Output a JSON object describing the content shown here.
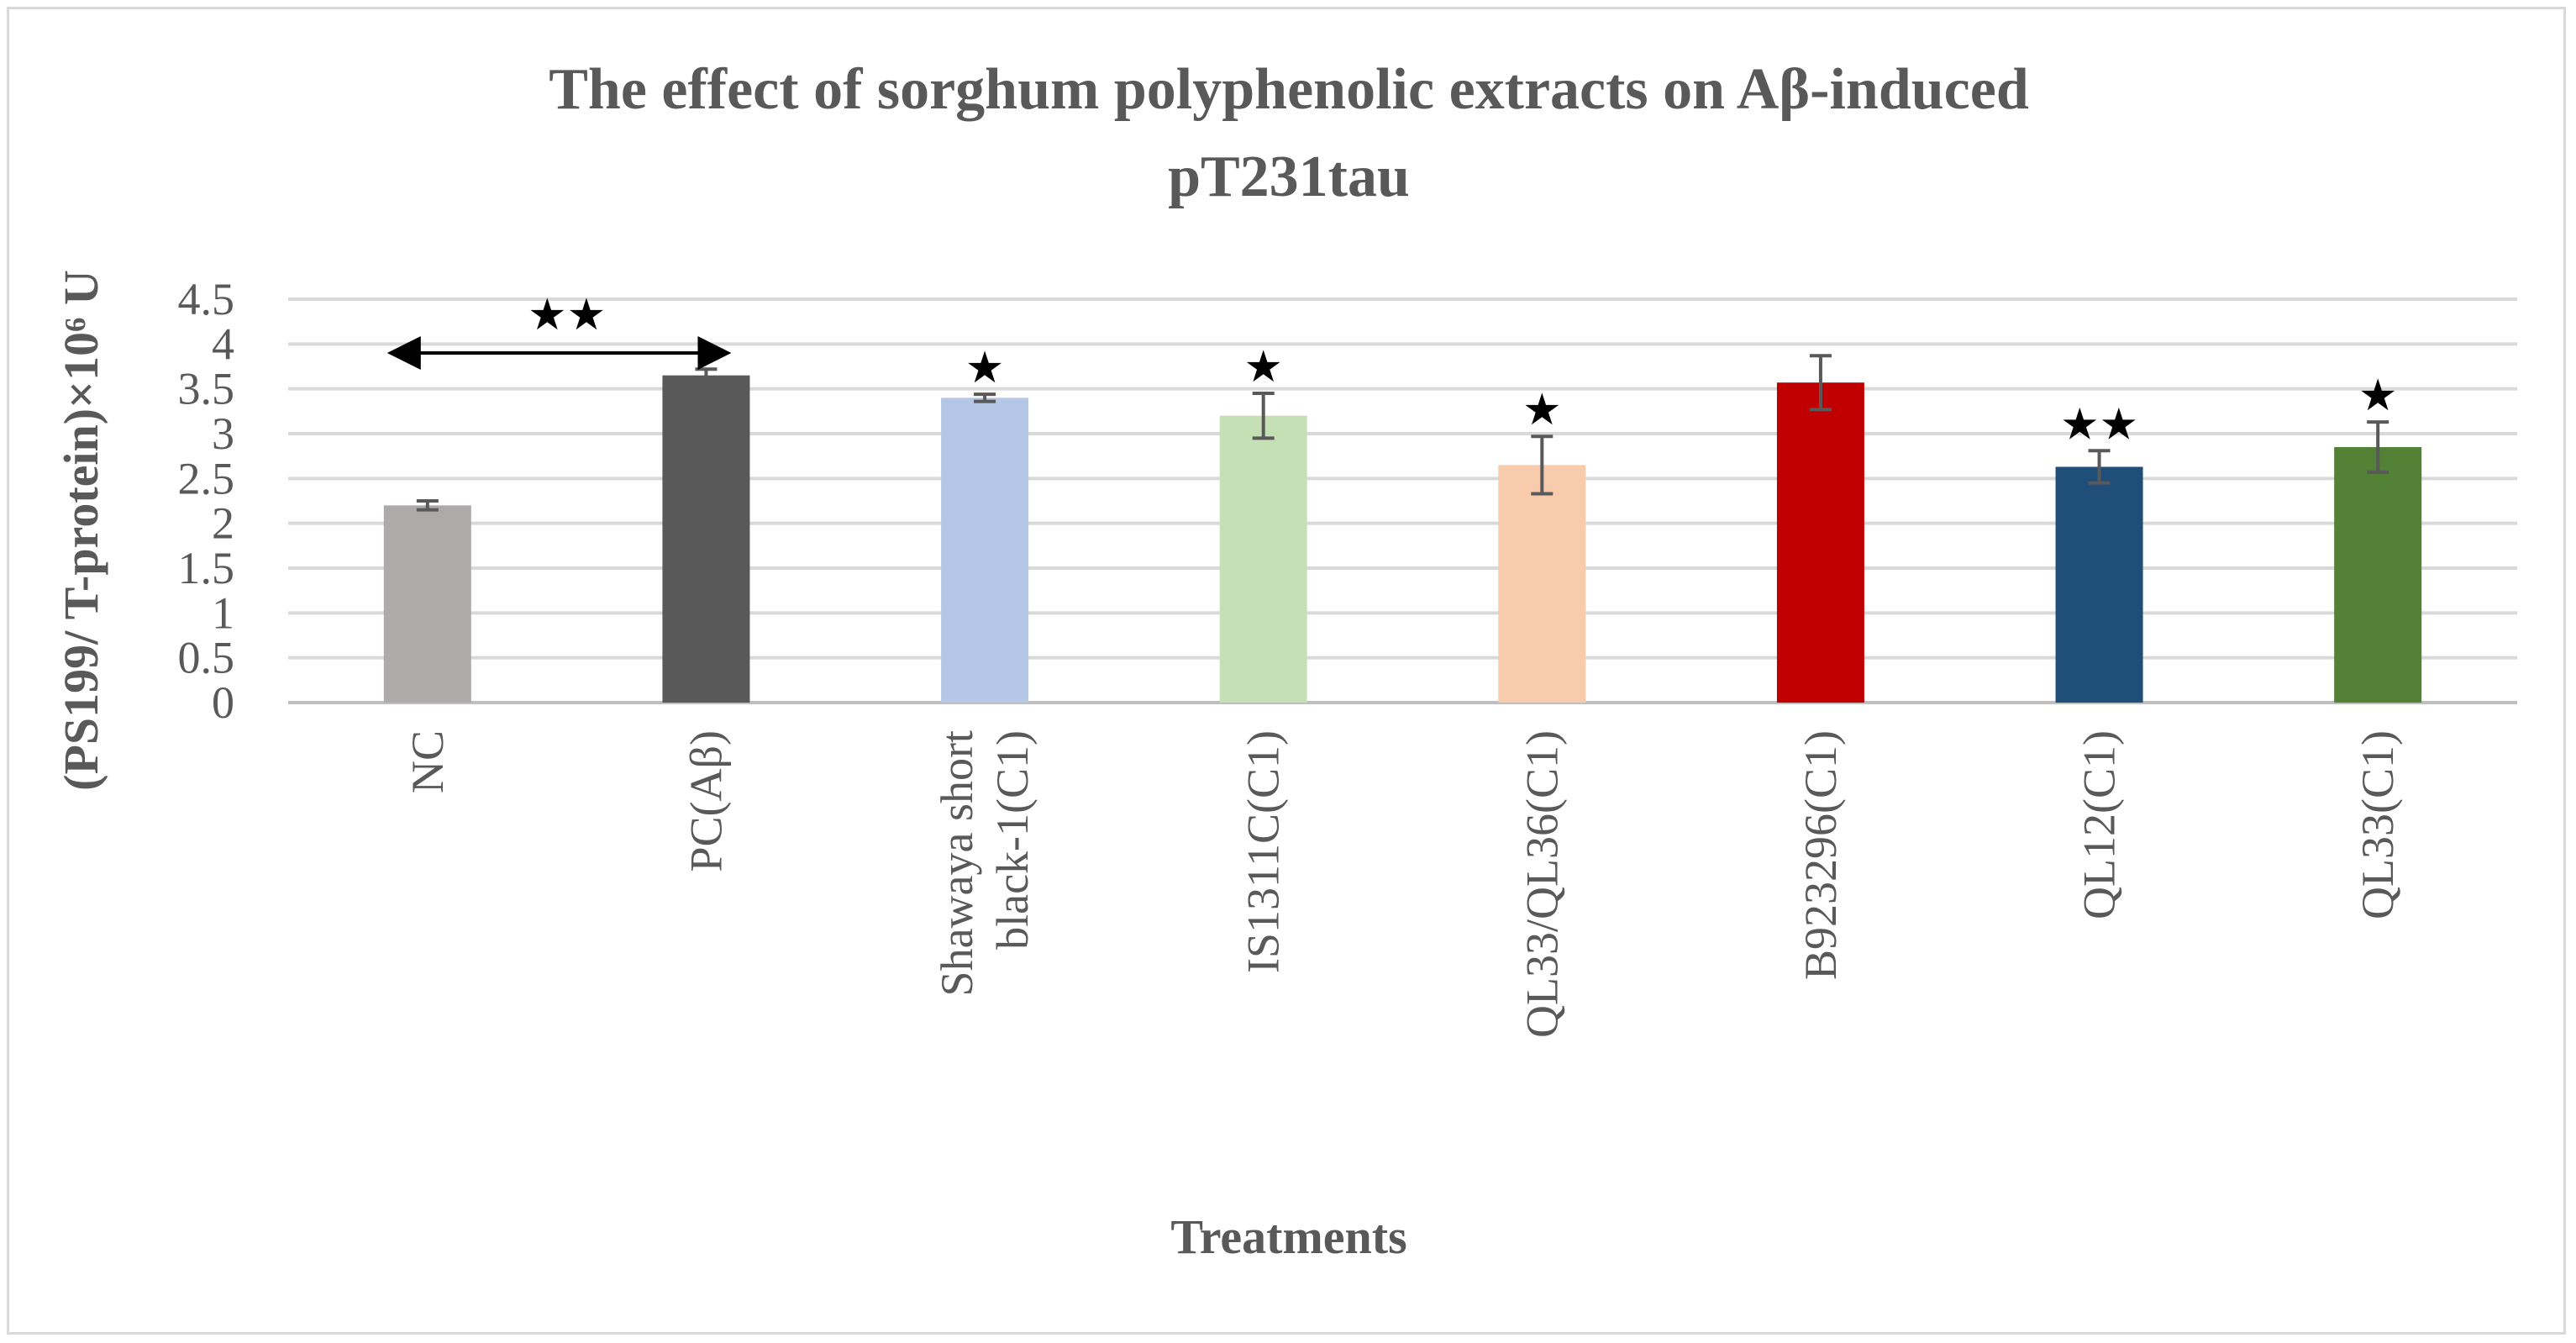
{
  "chart_data": {
    "type": "bar",
    "title_lines": [
      "The effect of sorghum polyphenolic extracts on Aβ-induced",
      "pT231tau"
    ],
    "xlabel": "Treatments",
    "ylabel": "(PS199/ T-protein)×10⁶ U",
    "ylim": [
      0,
      4.5
    ],
    "yticks": [
      "0",
      "0.5",
      "1",
      "1.5",
      "2",
      "2.5",
      "3",
      "3.5",
      "4",
      "4.5"
    ],
    "grid": true,
    "categories": [
      [
        "NC"
      ],
      [
        "PC(Aβ)"
      ],
      [
        "Shawaya short",
        "black-1(C1)"
      ],
      [
        "IS1311C(C1)"
      ],
      [
        "QL33/QL36(C1)"
      ],
      [
        "B923296(C1)"
      ],
      [
        "QL12(C1)"
      ],
      [
        "QL33(C1)"
      ]
    ],
    "values": [
      2.2,
      3.65,
      3.4,
      3.2,
      2.65,
      3.57,
      2.63,
      2.85
    ],
    "errors": [
      0.05,
      0.07,
      0.04,
      0.25,
      0.32,
      0.3,
      0.18,
      0.28
    ],
    "colors": [
      "#aeaaaa",
      "#595959",
      "#b4c7e7",
      "#c5e0b4",
      "#f8cbad",
      "#c00000",
      "#1f4e79",
      "#538135"
    ],
    "significance": [
      "",
      "",
      "★",
      "★",
      "★",
      "",
      "★★",
      "★"
    ],
    "comparison_arrow": {
      "from": "NC",
      "to": "PC(Aβ)",
      "label": "★★",
      "y": 3.9
    }
  }
}
